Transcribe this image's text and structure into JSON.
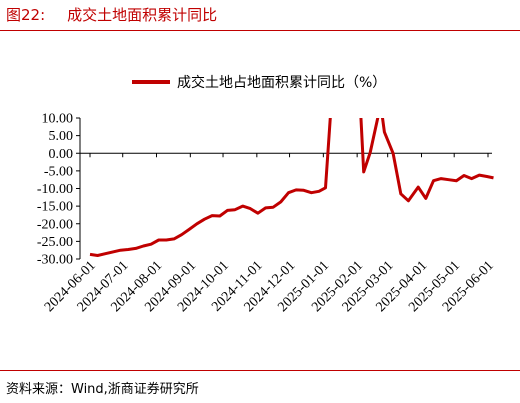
{
  "header": {
    "figure_no": "图22:",
    "title": "成交土地面积累计同比"
  },
  "footer": {
    "source": "资料来源：Wind,浙商证券研究所"
  },
  "colors": {
    "accent": "#c00000",
    "series": "#c00000"
  },
  "chart_data": {
    "type": "line",
    "title": "成交土地面积累计同比",
    "legend": {
      "position": "top-center",
      "entries": [
        "成交土地占地面积累计同比（%）"
      ]
    },
    "grid": false,
    "ylim": [
      -30,
      10
    ],
    "yticks": [
      "10.00",
      "5.00",
      "0.00",
      "-5.00",
      "-10.00",
      "-15.00",
      "-20.00",
      "-25.00",
      "-30.00"
    ],
    "xticks": [
      "2024-06-01",
      "2024-07-01",
      "2024-08-01",
      "2024-09-01",
      "2024-10-01",
      "2024-11-01",
      "2024-12-01",
      "2025-01-01",
      "2025-02-01",
      "2025-03-01",
      "2025-04-01",
      "2025-05-01",
      "2025-06-01"
    ],
    "xrange": [
      "2024-06-01",
      "2025-06-01"
    ],
    "series": [
      {
        "name": "成交土地占地面积累计同比（%）",
        "points": [
          [
            "2024-06-01",
            -28.7
          ],
          [
            "2024-06-08",
            -29.0
          ],
          [
            "2024-06-15",
            -28.5
          ],
          [
            "2024-06-22",
            -28.0
          ],
          [
            "2024-06-29",
            -27.5
          ],
          [
            "2024-07-06",
            -27.3
          ],
          [
            "2024-07-13",
            -27.0
          ],
          [
            "2024-07-20",
            -26.3
          ],
          [
            "2024-07-27",
            -25.8
          ],
          [
            "2024-08-03",
            -24.6
          ],
          [
            "2024-08-10",
            -24.6
          ],
          [
            "2024-08-17",
            -24.3
          ],
          [
            "2024-08-24",
            -23.1
          ],
          [
            "2024-08-31",
            -21.6
          ],
          [
            "2024-09-07",
            -20.0
          ],
          [
            "2024-09-14",
            -18.7
          ],
          [
            "2024-09-21",
            -17.7
          ],
          [
            "2024-09-28",
            -17.8
          ],
          [
            "2024-10-05",
            -16.2
          ],
          [
            "2024-10-12",
            -16.0
          ],
          [
            "2024-10-19",
            -15.0
          ],
          [
            "2024-10-26",
            -15.7
          ],
          [
            "2024-11-02",
            -17.0
          ],
          [
            "2024-11-09",
            -15.5
          ],
          [
            "2024-11-16",
            -15.3
          ],
          [
            "2024-11-23",
            -13.8
          ],
          [
            "2024-11-30",
            -11.2
          ],
          [
            "2024-12-07",
            -10.4
          ],
          [
            "2024-12-14",
            -10.5
          ],
          [
            "2024-12-21",
            -11.2
          ],
          [
            "2024-12-28",
            -10.8
          ],
          [
            "2025-01-03",
            -9.8
          ],
          [
            "2025-01-08",
            13.0
          ],
          [
            "2025-02-04",
            13.0
          ],
          [
            "2025-02-07",
            -5.3
          ],
          [
            "2025-02-13",
            0.2
          ],
          [
            "2025-02-20",
            10.2
          ],
          [
            "2025-02-23",
            13.0
          ],
          [
            "2025-02-26",
            6.0
          ],
          [
            "2025-03-06",
            0.0
          ],
          [
            "2025-03-13",
            -11.5
          ],
          [
            "2025-03-20",
            -13.5
          ],
          [
            "2025-03-29",
            -9.6
          ],
          [
            "2025-04-05",
            -12.8
          ],
          [
            "2025-04-12",
            -7.8
          ],
          [
            "2025-04-19",
            -7.2
          ],
          [
            "2025-04-26",
            -7.5
          ],
          [
            "2025-05-03",
            -7.8
          ],
          [
            "2025-05-10",
            -6.3
          ],
          [
            "2025-05-17",
            -7.2
          ],
          [
            "2025-05-24",
            -6.2
          ],
          [
            "2025-05-31",
            -6.6
          ],
          [
            "2025-06-06",
            -7.0
          ]
        ]
      }
    ]
  }
}
